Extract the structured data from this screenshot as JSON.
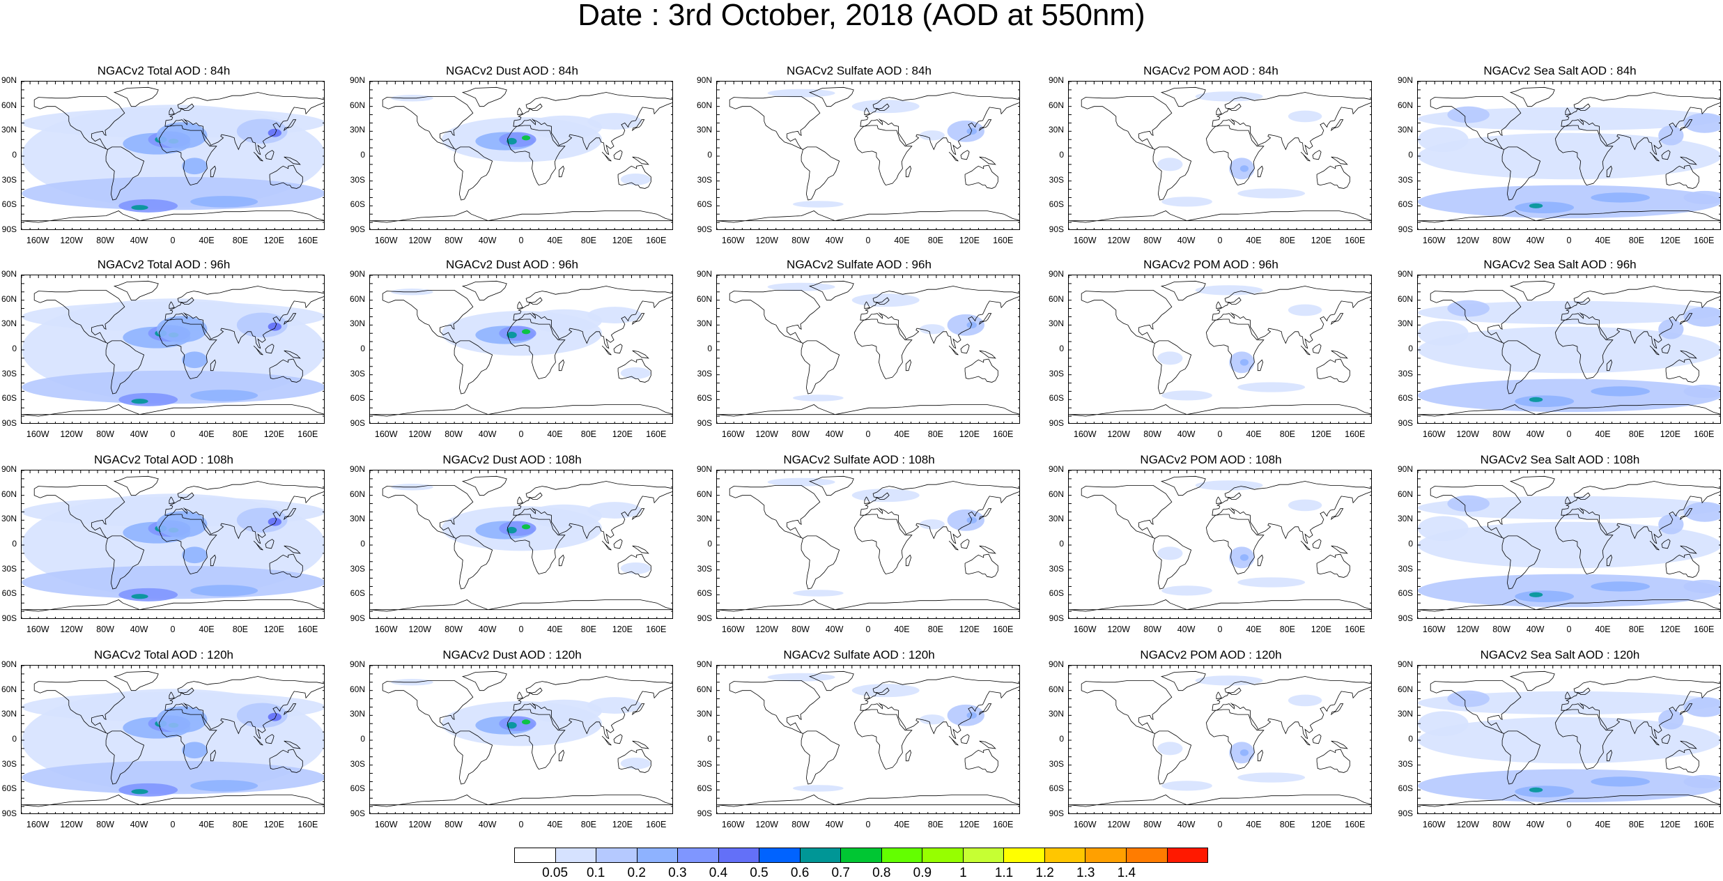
{
  "title": "Date : 3rd October, 2018 (AOD at 550nm)",
  "y_ticks": [
    "90N",
    "60N",
    "30N",
    "0",
    "30S",
    "60S",
    "90S"
  ],
  "x_ticks": [
    "160W",
    "120W",
    "80W",
    "40W",
    "0",
    "40E",
    "80E",
    "120E",
    "160E"
  ],
  "panels": [
    {
      "title": "NGACv2 Total AOD : 84h",
      "species": "total"
    },
    {
      "title": "NGACv2 Dust AOD : 84h",
      "species": "dust"
    },
    {
      "title": "NGACv2 Sulfate AOD : 84h",
      "species": "sulfate"
    },
    {
      "title": "NGACv2 POM AOD : 84h",
      "species": "pom"
    },
    {
      "title": "NGACv2 Sea Salt AOD : 84h",
      "species": "seasalt"
    },
    {
      "title": "NGACv2 Total AOD : 96h",
      "species": "total"
    },
    {
      "title": "NGACv2 Dust AOD : 96h",
      "species": "dust"
    },
    {
      "title": "NGACv2 Sulfate AOD : 96h",
      "species": "sulfate"
    },
    {
      "title": "NGACv2 POM AOD : 96h",
      "species": "pom"
    },
    {
      "title": "NGACv2 Sea Salt AOD : 96h",
      "species": "seasalt"
    },
    {
      "title": "NGACv2 Total AOD : 108h",
      "species": "total"
    },
    {
      "title": "NGACv2 Dust AOD : 108h",
      "species": "dust"
    },
    {
      "title": "NGACv2 Sulfate AOD : 108h",
      "species": "sulfate"
    },
    {
      "title": "NGACv2 POM AOD : 108h",
      "species": "pom"
    },
    {
      "title": "NGACv2 Sea Salt AOD : 108h",
      "species": "seasalt"
    },
    {
      "title": "NGACv2 Total AOD : 120h",
      "species": "total"
    },
    {
      "title": "NGACv2 Dust AOD : 120h",
      "species": "dust"
    },
    {
      "title": "NGACv2 Sulfate AOD : 120h",
      "species": "sulfate"
    },
    {
      "title": "NGACv2 POM AOD : 120h",
      "species": "pom"
    },
    {
      "title": "NGACv2 Sea Salt  AOD : 120h",
      "species": "seasalt"
    }
  ],
  "colorbar": {
    "labels": [
      "0.05",
      "0.1",
      "0.2",
      "0.3",
      "0.4",
      "0.5",
      "0.6",
      "0.7",
      "0.8",
      "0.9",
      "1",
      "1.1",
      "1.2",
      "1.3",
      "1.4"
    ],
    "colors": [
      "#ffffff",
      "#d6e2ff",
      "#b5c9ff",
      "#8eb2ff",
      "#7f96ff",
      "#6370f8",
      "#0063ff",
      "#009696",
      "#00c633",
      "#63ff00",
      "#96ff00",
      "#c6ff33",
      "#ffff00",
      "#ffc600",
      "#ffa000",
      "#ff7c00",
      "#ff1900"
    ]
  }
}
